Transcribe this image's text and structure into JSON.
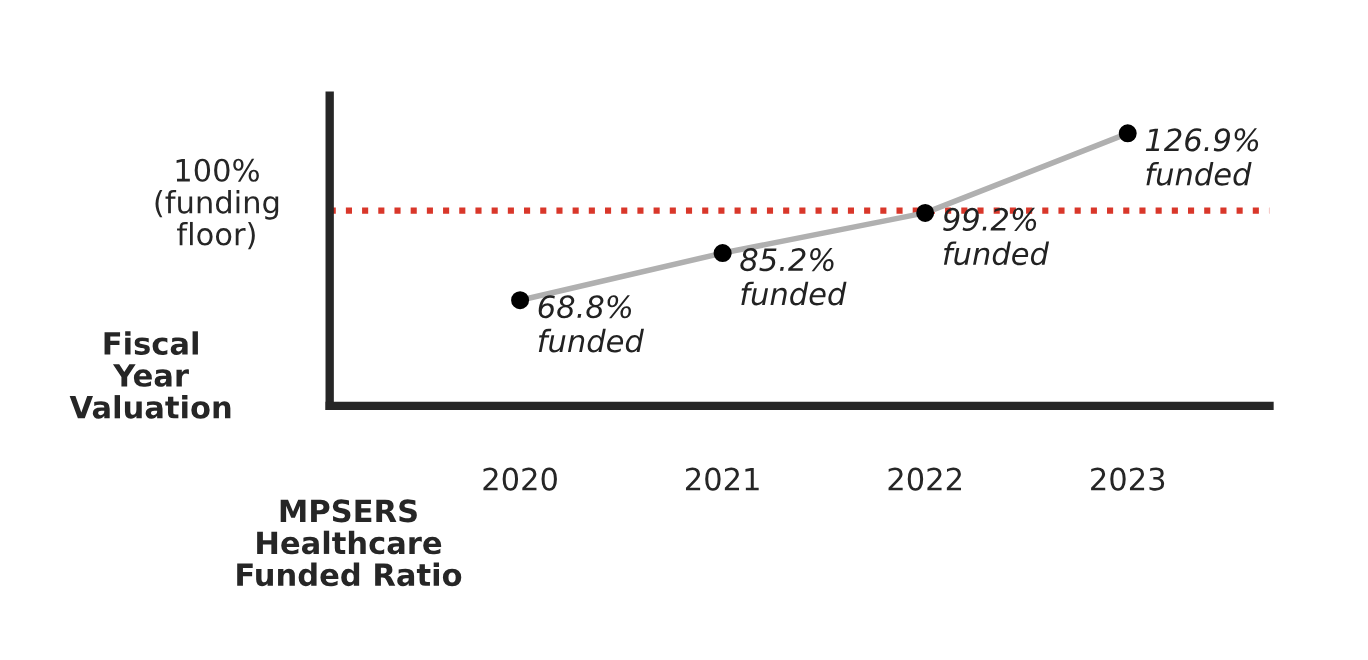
{
  "chart_data": {
    "type": "line",
    "xlabel": "Fiscal\nYear\nValuation",
    "ylabel": "MPSERS\nHealthcare\nFunded Ratio",
    "categories": [
      "2020",
      "2021",
      "2022",
      "2023"
    ],
    "series": [
      {
        "color": "#b0b0b0",
        "values": [
          68.8,
          85.2,
          99.2,
          126.9
        ],
        "value_labels": [
          "68.8%\nfunded",
          "85.2%\nfunded",
          "99.2%\nfunded",
          "126.9%\nfunded"
        ]
      }
    ],
    "ylim": [
      32,
      140
    ],
    "tick_labels": "x",
    "marker": "circle",
    "line_style": "solid",
    "grid": false,
    "legend": false,
    "ref_lines": [
      {
        "axis": "y",
        "value": 100,
        "label": "100%\n(funding\nfloor)",
        "color": "#d9372a",
        "line_style": "dotted"
      }
    ]
  }
}
